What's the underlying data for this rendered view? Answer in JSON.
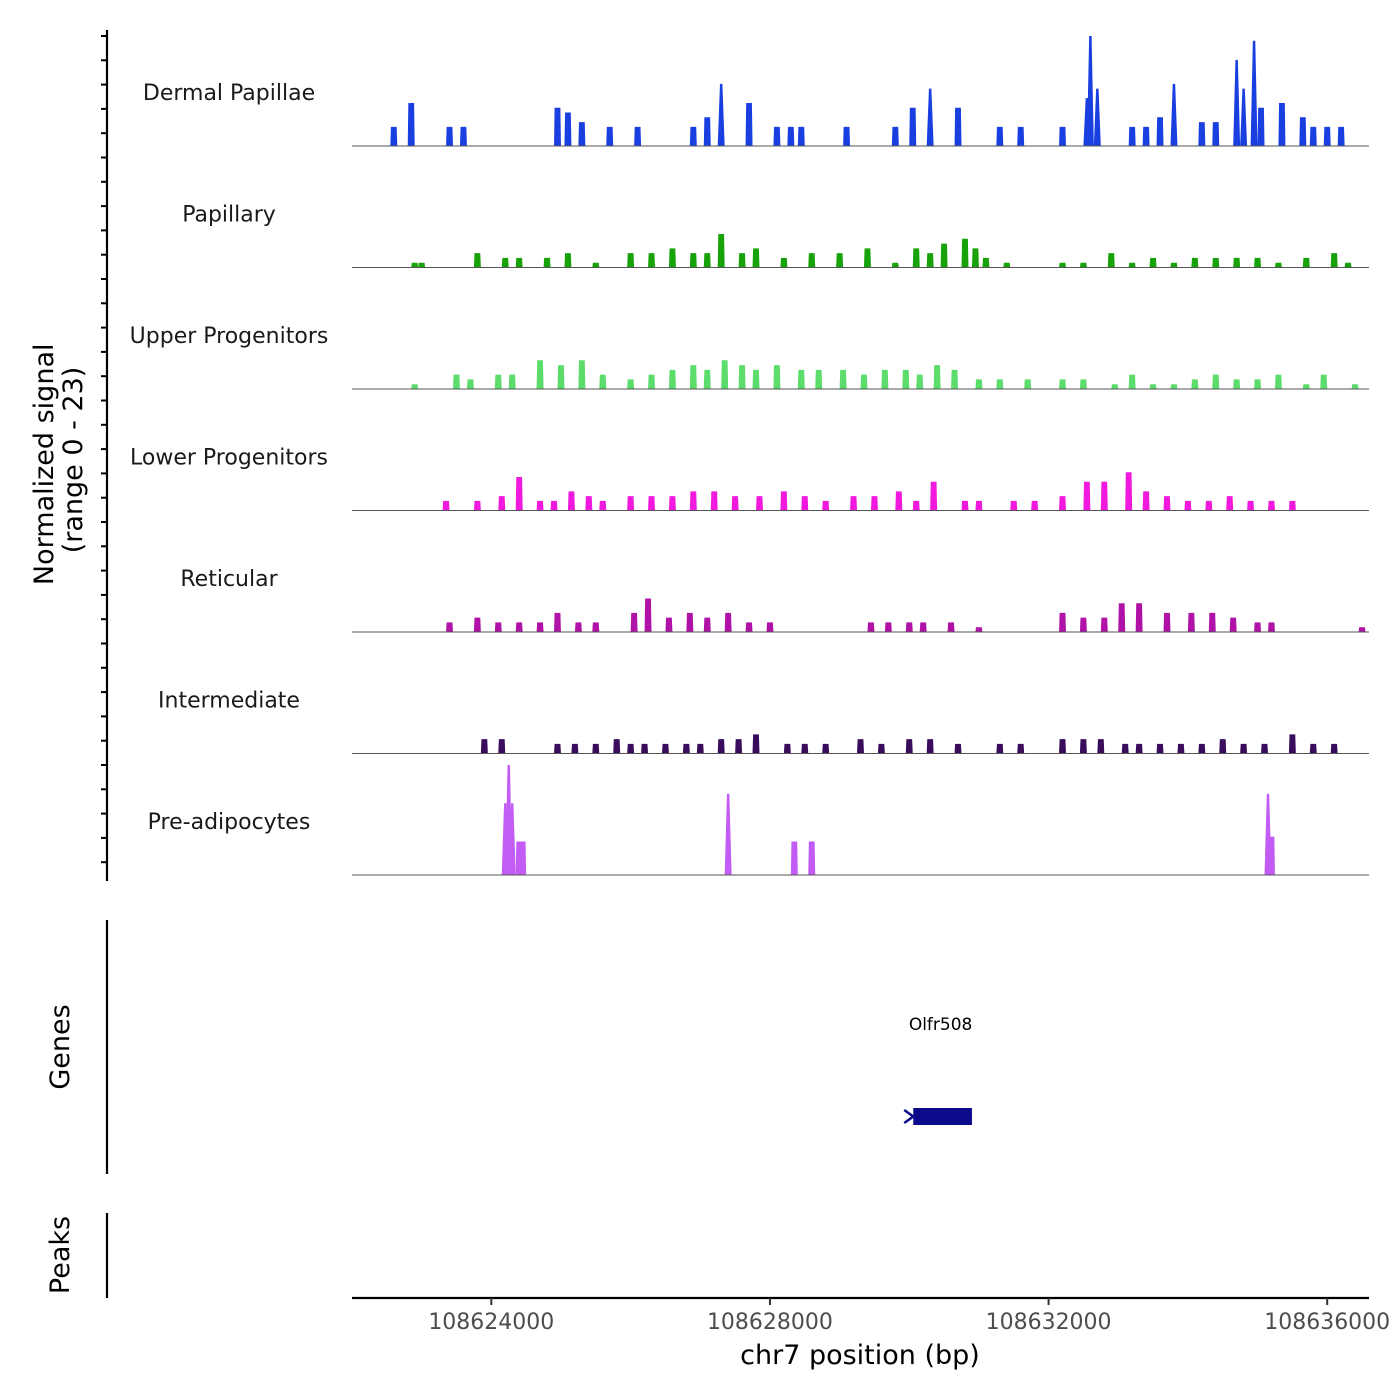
{
  "chart_data": {
    "type": "area",
    "title": "",
    "genomic_region": {
      "chrom": "chr7",
      "start": 108622000,
      "end": 108636600
    },
    "coverage": {
      "ylabel_line1": "Normalized signal",
      "ylabel_line2": "(range 0 - 23)",
      "ylim": [
        0,
        23
      ],
      "bin_width_bp": 100,
      "tracks": [
        {
          "name": "Dermal Papillae",
          "color": "#1A3FE0",
          "peaks": [
            [
              108622600,
              4
            ],
            [
              108622850,
              9
            ],
            [
              108623400,
              4
            ],
            [
              108623600,
              4
            ],
            [
              108624950,
              8
            ],
            [
              108625100,
              7
            ],
            [
              108625300,
              5
            ],
            [
              108625700,
              4
            ],
            [
              108626100,
              4
            ],
            [
              108626900,
              4
            ],
            [
              108627100,
              6
            ],
            [
              108627300,
              13
            ],
            [
              108627700,
              9
            ],
            [
              108628100,
              4
            ],
            [
              108628300,
              4
            ],
            [
              108628450,
              4
            ],
            [
              108629100,
              4
            ],
            [
              108629800,
              4
            ],
            [
              108630050,
              8
            ],
            [
              108630300,
              12
            ],
            [
              108630700,
              8
            ],
            [
              108631300,
              4
            ],
            [
              108631600,
              4
            ],
            [
              108632200,
              4
            ],
            [
              108632550,
              10
            ],
            [
              108632600,
              23
            ],
            [
              108632700,
              12
            ],
            [
              108633200,
              4
            ],
            [
              108633400,
              4
            ],
            [
              108633600,
              6
            ],
            [
              108633800,
              13
            ],
            [
              108634200,
              5
            ],
            [
              108634400,
              5
            ],
            [
              108634700,
              18
            ],
            [
              108634800,
              12
            ],
            [
              108634950,
              22
            ],
            [
              108635050,
              8
            ],
            [
              108635350,
              9
            ],
            [
              108635650,
              6
            ],
            [
              108635800,
              4
            ],
            [
              108636000,
              4
            ],
            [
              108636200,
              4
            ]
          ]
        },
        {
          "name": "Papillary",
          "color": "#17A20A",
          "peaks": [
            [
              108622900,
              1
            ],
            [
              108623000,
              1
            ],
            [
              108623800,
              3
            ],
            [
              108624200,
              2
            ],
            [
              108624400,
              2
            ],
            [
              108624800,
              2
            ],
            [
              108625100,
              3
            ],
            [
              108625500,
              1
            ],
            [
              108626000,
              3
            ],
            [
              108626300,
              3
            ],
            [
              108626600,
              4
            ],
            [
              108626900,
              3
            ],
            [
              108627100,
              3
            ],
            [
              108627300,
              7
            ],
            [
              108627600,
              3
            ],
            [
              108627800,
              4
            ],
            [
              108628200,
              2
            ],
            [
              108628600,
              3
            ],
            [
              108629000,
              3
            ],
            [
              108629400,
              4
            ],
            [
              108629800,
              1
            ],
            [
              108630100,
              4
            ],
            [
              108630300,
              3
            ],
            [
              108630500,
              5
            ],
            [
              108630800,
              6
            ],
            [
              108630950,
              4
            ],
            [
              108631100,
              2
            ],
            [
              108631400,
              1
            ],
            [
              108632200,
              1
            ],
            [
              108632500,
              1
            ],
            [
              108632900,
              3
            ],
            [
              108633200,
              1
            ],
            [
              108633500,
              2
            ],
            [
              108633800,
              1
            ],
            [
              108634100,
              2
            ],
            [
              108634400,
              2
            ],
            [
              108634700,
              2
            ],
            [
              108635000,
              2
            ],
            [
              108635300,
              1
            ],
            [
              108635700,
              2
            ],
            [
              108636100,
              3
            ],
            [
              108636300,
              1
            ]
          ]
        },
        {
          "name": "Upper Progenitors",
          "color": "#5CDC6A",
          "peaks": [
            [
              108622900,
              1
            ],
            [
              108623500,
              3
            ],
            [
              108623700,
              2
            ],
            [
              108624100,
              3
            ],
            [
              108624300,
              3
            ],
            [
              108624700,
              6
            ],
            [
              108625000,
              5
            ],
            [
              108625300,
              6
            ],
            [
              108625600,
              3
            ],
            [
              108626000,
              2
            ],
            [
              108626300,
              3
            ],
            [
              108626600,
              4
            ],
            [
              108626900,
              5
            ],
            [
              108627100,
              4
            ],
            [
              108627350,
              6
            ],
            [
              108627600,
              5
            ],
            [
              108627800,
              4
            ],
            [
              108628100,
              5
            ],
            [
              108628450,
              4
            ],
            [
              108628700,
              4
            ],
            [
              108629050,
              4
            ],
            [
              108629350,
              3
            ],
            [
              108629650,
              4
            ],
            [
              108629950,
              4
            ],
            [
              108630150,
              3
            ],
            [
              108630400,
              5
            ],
            [
              108630650,
              4
            ],
            [
              108631000,
              2
            ],
            [
              108631300,
              2
            ],
            [
              108631700,
              2
            ],
            [
              108632200,
              2
            ],
            [
              108632500,
              2
            ],
            [
              108632950,
              1
            ],
            [
              108633200,
              3
            ],
            [
              108633500,
              1
            ],
            [
              108633800,
              1
            ],
            [
              108634100,
              2
            ],
            [
              108634400,
              3
            ],
            [
              108634700,
              2
            ],
            [
              108635000,
              2
            ],
            [
              108635300,
              3
            ],
            [
              108635700,
              1
            ],
            [
              108635950,
              3
            ],
            [
              108636400,
              1
            ]
          ]
        },
        {
          "name": "Lower Progenitors",
          "color": "#F019DD",
          "peaks": [
            [
              108623350,
              2
            ],
            [
              108623800,
              2
            ],
            [
              108624150,
              3
            ],
            [
              108624400,
              7
            ],
            [
              108624700,
              2
            ],
            [
              108624900,
              2
            ],
            [
              108625150,
              4
            ],
            [
              108625400,
              3
            ],
            [
              108625600,
              2
            ],
            [
              108626000,
              3
            ],
            [
              108626300,
              3
            ],
            [
              108626600,
              3
            ],
            [
              108626900,
              4
            ],
            [
              108627200,
              4
            ],
            [
              108627500,
              3
            ],
            [
              108627850,
              3
            ],
            [
              108628200,
              4
            ],
            [
              108628500,
              3
            ],
            [
              108628800,
              2
            ],
            [
              108629200,
              3
            ],
            [
              108629500,
              3
            ],
            [
              108629850,
              4
            ],
            [
              108630100,
              2
            ],
            [
              108630350,
              6
            ],
            [
              108630800,
              2
            ],
            [
              108631000,
              2
            ],
            [
              108631500,
              2
            ],
            [
              108631800,
              2
            ],
            [
              108632200,
              3
            ],
            [
              108632550,
              6
            ],
            [
              108632800,
              6
            ],
            [
              108633150,
              8
            ],
            [
              108633400,
              4
            ],
            [
              108633700,
              3
            ],
            [
              108634000,
              2
            ],
            [
              108634300,
              2
            ],
            [
              108634600,
              3
            ],
            [
              108634900,
              2
            ],
            [
              108635200,
              2
            ],
            [
              108635500,
              2
            ]
          ]
        },
        {
          "name": "Reticular",
          "color": "#B012A8",
          "peaks": [
            [
              108623400,
              2
            ],
            [
              108623800,
              3
            ],
            [
              108624100,
              2
            ],
            [
              108624400,
              2
            ],
            [
              108624700,
              2
            ],
            [
              108624950,
              4
            ],
            [
              108625250,
              2
            ],
            [
              108625500,
              2
            ],
            [
              108626050,
              4
            ],
            [
              108626250,
              7
            ],
            [
              108626550,
              3
            ],
            [
              108626850,
              4
            ],
            [
              108627100,
              3
            ],
            [
              108627400,
              4
            ],
            [
              108627700,
              2
            ],
            [
              108628000,
              2
            ],
            [
              108629450,
              2
            ],
            [
              108629700,
              2
            ],
            [
              108630000,
              2
            ],
            [
              108630200,
              2
            ],
            [
              108630600,
              2
            ],
            [
              108631000,
              1
            ],
            [
              108632200,
              4
            ],
            [
              108632500,
              3
            ],
            [
              108632800,
              3
            ],
            [
              108633050,
              6
            ],
            [
              108633300,
              6
            ],
            [
              108633700,
              4
            ],
            [
              108634050,
              4
            ],
            [
              108634350,
              4
            ],
            [
              108634650,
              3
            ],
            [
              108635000,
              2
            ],
            [
              108635200,
              2
            ],
            [
              108636500,
              1
            ]
          ]
        },
        {
          "name": "Intermediate",
          "color": "#3A0C5C",
          "peaks": [
            [
              108623900,
              3
            ],
            [
              108624150,
              3
            ],
            [
              108624950,
              2
            ],
            [
              108625200,
              2
            ],
            [
              108625500,
              2
            ],
            [
              108625800,
              3
            ],
            [
              108626000,
              2
            ],
            [
              108626200,
              2
            ],
            [
              108626500,
              2
            ],
            [
              108626800,
              2
            ],
            [
              108627000,
              2
            ],
            [
              108627300,
              3
            ],
            [
              108627550,
              3
            ],
            [
              108627800,
              4
            ],
            [
              108628250,
              2
            ],
            [
              108628500,
              2
            ],
            [
              108628800,
              2
            ],
            [
              108629300,
              3
            ],
            [
              108629600,
              2
            ],
            [
              108630000,
              3
            ],
            [
              108630300,
              3
            ],
            [
              108630700,
              2
            ],
            [
              108631300,
              2
            ],
            [
              108631600,
              2
            ],
            [
              108632200,
              3
            ],
            [
              108632500,
              3
            ],
            [
              108632750,
              3
            ],
            [
              108633100,
              2
            ],
            [
              108633300,
              2
            ],
            [
              108633600,
              2
            ],
            [
              108633900,
              2
            ],
            [
              108634200,
              2
            ],
            [
              108634500,
              3
            ],
            [
              108634800,
              2
            ],
            [
              108635100,
              2
            ],
            [
              108635500,
              4
            ],
            [
              108635800,
              2
            ],
            [
              108636100,
              2
            ]
          ]
        },
        {
          "name": "Pre-adipocytes",
          "color": "#C35CF5",
          "peaks": [
            [
              108624200,
              15
            ],
            [
              108624250,
              23
            ],
            [
              108624300,
              15
            ],
            [
              108624400,
              7
            ],
            [
              108624450,
              7
            ],
            [
              108627400,
              17
            ],
            [
              108628350,
              7
            ],
            [
              108628600,
              7
            ],
            [
              108635150,
              17
            ],
            [
              108635200,
              8
            ]
          ]
        }
      ]
    },
    "genes": {
      "label": "Genes",
      "items": [
        {
          "name": "Olfr508",
          "start": 108630000,
          "end": 108630900,
          "strand": "-",
          "color": "#0A0A8A"
        }
      ]
    },
    "peaks_track": {
      "label": "Peaks",
      "items": []
    },
    "x_axis": {
      "label": "chr7 position (bp)",
      "ticks": [
        108624000,
        108628000,
        108632000,
        108636000
      ],
      "tick_labels": [
        "108624000",
        "108628000",
        "108632000",
        "108636000"
      ]
    }
  }
}
